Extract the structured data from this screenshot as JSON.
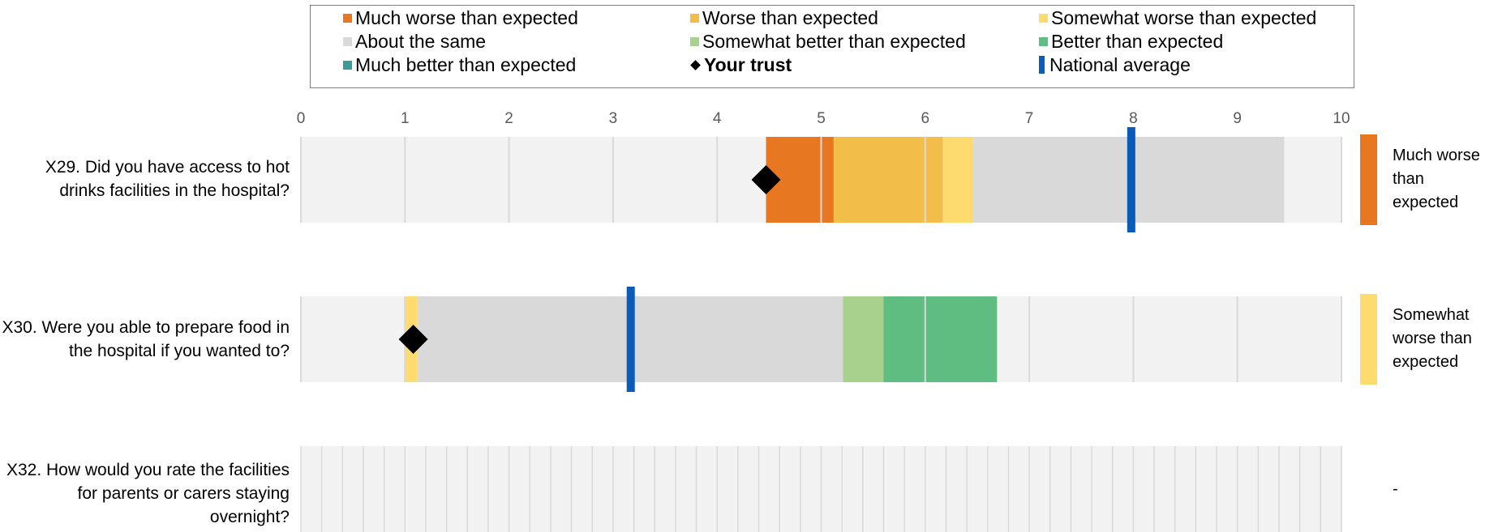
{
  "legend": {
    "items": [
      {
        "label": "Much worse than expected",
        "kind": "square",
        "color": "#e87722"
      },
      {
        "label": "Worse than expected",
        "kind": "square",
        "color": "#f2bd49"
      },
      {
        "label": "Somewhat worse than expected",
        "kind": "square",
        "color": "#fedb6e"
      },
      {
        "label": "About the same",
        "kind": "square",
        "color": "#d9d9d9"
      },
      {
        "label": "Somewhat better than expected",
        "kind": "square",
        "color": "#a9d18e"
      },
      {
        "label": "Better than expected",
        "kind": "square",
        "color": "#5fbd82"
      },
      {
        "label": "Much better than expected",
        "kind": "square",
        "color": "#3a9a9c"
      },
      {
        "label": "Your trust",
        "kind": "diamond",
        "color": "#000000"
      },
      {
        "label": "National average",
        "kind": "bar",
        "color": "#0b5bb8"
      }
    ]
  },
  "chart_data": {
    "type": "bar",
    "xlim": [
      0,
      10
    ],
    "ticks": [
      "0",
      "1",
      "2",
      "3",
      "4",
      "5",
      "6",
      "7",
      "8",
      "9",
      "10"
    ],
    "colors": {
      "background": "#f2f2f2",
      "grid": "#d9d9d9",
      "much_worse": "#e87722",
      "worse": "#f2bd49",
      "somewhat_worse": "#fedb6e",
      "about_same": "#d9d9d9",
      "somewhat_better": "#a9d18e",
      "better": "#5fbd82",
      "much_better": "#3a9a9c",
      "trust": "#000000",
      "national": "#0b5bb8"
    },
    "rows": [
      {
        "question": "X29. Did you have access to hot drinks facilities in the hospital?",
        "segments": [
          {
            "band": "much_worse",
            "from": 4.47,
            "to": 5.12
          },
          {
            "band": "worse",
            "from": 5.12,
            "to": 6.17
          },
          {
            "band": "somewhat_worse",
            "from": 6.17,
            "to": 6.46
          },
          {
            "band": "about_same",
            "from": 6.46,
            "to": 9.45
          }
        ],
        "trust_score": 4.47,
        "national_average": 7.98,
        "result": "Much worse than expected",
        "result_color": "#e87722"
      },
      {
        "question": "X30. Were you able to prepare food in the hospital if you wanted to?",
        "segments": [
          {
            "band": "somewhat_worse",
            "from": 1.0,
            "to": 1.12
          },
          {
            "band": "about_same",
            "from": 1.12,
            "to": 5.21
          },
          {
            "band": "somewhat_better",
            "from": 5.21,
            "to": 5.6
          },
          {
            "band": "better",
            "from": 5.6,
            "to": 6.69
          }
        ],
        "trust_score": 1.08,
        "national_average": 3.17,
        "result": "Somewhat worse than expected",
        "result_color": "#fedb6e"
      },
      {
        "question": "X32. How would you rate the facilities for parents or carers staying overnight?",
        "segments": [],
        "trust_score": null,
        "national_average": null,
        "result": "-",
        "result_color": null
      }
    ]
  }
}
